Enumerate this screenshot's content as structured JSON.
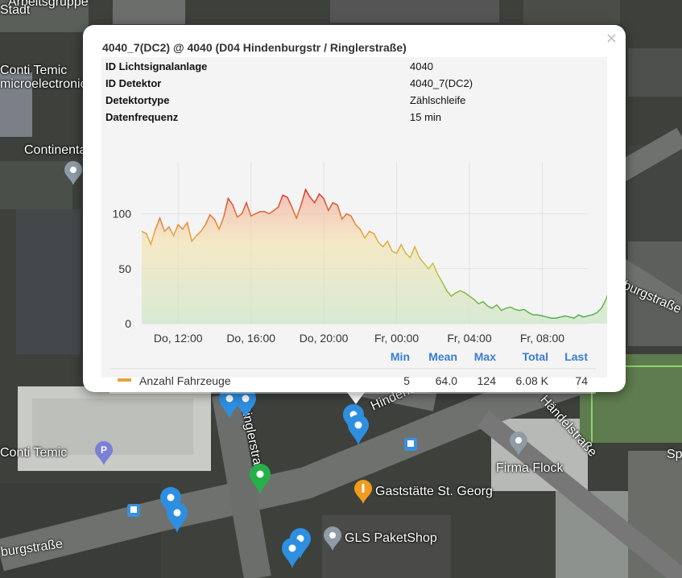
{
  "map": {
    "labels": [
      "Arbeitsgruppe",
      "Stadt",
      "Conti Temic",
      "microelectronic",
      "Continental",
      "Hindenburgstraße",
      "Ringlerstraße",
      "Firma Flock",
      "Gaststätte St. Georg",
      "GLS PaketShop",
      "Conti Temic",
      "burgstraße",
      "Händelstraße",
      "Sp"
    ]
  },
  "popup": {
    "title": "4040_7(DC2) @ 4040 (D04 Hindenburgstr / Ringlerstraße)",
    "close": "×",
    "info": [
      {
        "key": "ID Lichtsignalanlage",
        "value": "4040"
      },
      {
        "key": "ID Detektor",
        "value": "4040_7(DC2)"
      },
      {
        "key": "Detektortype",
        "value": "Zählschleife"
      },
      {
        "key": "Datenfrequenz",
        "value": "15 min"
      }
    ]
  },
  "chart_data": {
    "type": "area",
    "x_ticks": [
      "Do, 12:00",
      "Do, 16:00",
      "Do, 20:00",
      "Fr, 00:00",
      "Fr, 04:00",
      "Fr, 08:00"
    ],
    "y_ticks": [
      "100",
      "50",
      "0"
    ],
    "ylim": [
      0,
      140
    ],
    "x_range_hours": [
      0,
      24.5
    ],
    "series": [
      {
        "name": "Anzahl Fahrzeuge",
        "color": "#e8a33b",
        "values": [
          84,
          82,
          72,
          86,
          96,
          84,
          88,
          80,
          90,
          86,
          92,
          75,
          80,
          84,
          90,
          99,
          95,
          86,
          97,
          114,
          108,
          97,
          100,
          110,
          98,
          100,
          102,
          102,
          100,
          103,
          106,
          117,
          115,
          106,
          96,
          108,
          122,
          115,
          110,
          118,
          114,
          103,
          110,
          108,
          95,
          100,
          98,
          90,
          86,
          78,
          84,
          82,
          74,
          70,
          75,
          66,
          64,
          72,
          64,
          60,
          70,
          60,
          55,
          50,
          55,
          45,
          38,
          30,
          25,
          28,
          30,
          28,
          25,
          22,
          18,
          20,
          16,
          14,
          17,
          12,
          14,
          15,
          13,
          12,
          13,
          10,
          8,
          8,
          7,
          6,
          5,
          5,
          6,
          7,
          6,
          5,
          8,
          6,
          7,
          8,
          10,
          14,
          22,
          34,
          40,
          52,
          54,
          46,
          42,
          45,
          55,
          56,
          52,
          60,
          64,
          72,
          82,
          92,
          96,
          90,
          100,
          104,
          92,
          83,
          80,
          86,
          82,
          76,
          72,
          80,
          88,
          76,
          74
        ]
      }
    ],
    "stats_headers": [
      "Min",
      "Mean",
      "Max",
      "Total",
      "Last"
    ],
    "stats": [
      {
        "name": "Anzahl Fahrzeuge",
        "values": [
          "5",
          "64.0",
          "124",
          "6.08 K",
          "74"
        ]
      }
    ]
  }
}
